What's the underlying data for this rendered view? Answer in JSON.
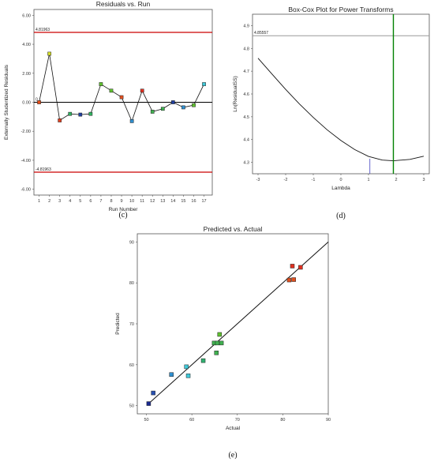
{
  "chart_data": [
    {
      "id": "c",
      "type": "line",
      "title": "Residuals vs. Run",
      "xlabel": "Run Number",
      "ylabel": "Externally Studentized Residuals",
      "caption": "(c)",
      "xlim": [
        0.5,
        17.8
      ],
      "ylim": [
        -6.4,
        6.4
      ],
      "x_ticks": [
        "1",
        "2",
        "3",
        "4",
        "5",
        "6",
        "7",
        "8",
        "9",
        "10",
        "11",
        "12",
        "13",
        "14",
        "15",
        "16",
        "17"
      ],
      "y_ticks": [
        {
          "v": 6,
          "label": "6.00"
        },
        {
          "v": 4,
          "label": "4.00"
        },
        {
          "v": 2,
          "label": "2.00"
        },
        {
          "v": 0,
          "label": "0.00"
        },
        {
          "v": -2,
          "label": "-2.00"
        },
        {
          "v": -4,
          "label": "-4.00"
        },
        {
          "v": -6,
          "label": "-6.00"
        }
      ],
      "ref_lines": [
        {
          "v": 4.81963,
          "label": "4.81963",
          "color": "#cc0000"
        },
        {
          "v": 0,
          "label": "0",
          "color": "#000000"
        },
        {
          "v": -4.81963,
          "label": "-4.81963",
          "color": "#cc0000"
        }
      ],
      "x": [
        1,
        2,
        3,
        4,
        5,
        6,
        7,
        8,
        9,
        10,
        11,
        12,
        13,
        14,
        15,
        16,
        17
      ],
      "values": [
        0.0,
        3.35,
        -1.25,
        -0.8,
        -0.85,
        -0.8,
        1.25,
        0.8,
        0.35,
        -1.3,
        0.8,
        -0.65,
        -0.45,
        0.0,
        -0.35,
        -0.2,
        1.25
      ],
      "point_colors": [
        "#e8501a",
        "#d6e02a",
        "#e04020",
        "#30b060",
        "#2040a0",
        "#30b060",
        "#60c030",
        "#60c030",
        "#e05020",
        "#3090d0",
        "#e03020",
        "#40b050",
        "#40b050",
        "#2040a0",
        "#3090d0",
        "#60c030",
        "#40c8d8"
      ]
    },
    {
      "id": "d",
      "type": "line",
      "title": "Box-Cox Plot for Power Transforms",
      "xlabel": "Lambda",
      "ylabel": "Ln(ResidualSS)",
      "caption": "(d)",
      "xlim": [
        -3.2,
        3.2
      ],
      "ylim": [
        4.25,
        4.95
      ],
      "x_ticks": [
        {
          "v": -3,
          "label": "-3"
        },
        {
          "v": -2,
          "label": "-2"
        },
        {
          "v": -1,
          "label": "-1"
        },
        {
          "v": 0,
          "label": "0"
        },
        {
          "v": 1,
          "label": "1"
        },
        {
          "v": 2,
          "label": "2"
        },
        {
          "v": 3,
          "label": "3"
        }
      ],
      "y_ticks": [
        {
          "v": 4.3,
          "label": "4.3"
        },
        {
          "v": 4.4,
          "label": "4.4"
        },
        {
          "v": 4.5,
          "label": "4.5"
        },
        {
          "v": 4.6,
          "label": "4.6"
        },
        {
          "v": 4.7,
          "label": "4.7"
        },
        {
          "v": 4.8,
          "label": "4.8"
        },
        {
          "v": 4.9,
          "label": "4.9"
        }
      ],
      "ref_lines": [
        {
          "v": 4.85557,
          "label": "4.85557",
          "color": "#999999"
        }
      ],
      "vlines": [
        {
          "v": 1.9,
          "color": "#008000"
        },
        {
          "v": 1.05,
          "color": "#4040c0"
        }
      ],
      "x": [
        -3.0,
        -2.5,
        -2.0,
        -1.5,
        -1.0,
        -0.5,
        0.0,
        0.5,
        1.0,
        1.5,
        1.9,
        2.5,
        3.0
      ],
      "values": [
        4.757,
        4.688,
        4.62,
        4.556,
        4.497,
        4.443,
        4.396,
        4.356,
        4.326,
        4.31,
        4.307,
        4.313,
        4.327
      ]
    },
    {
      "id": "e",
      "type": "scatter",
      "title": "Predicted vs. Actual",
      "xlabel": "Actual",
      "ylabel": "Predicted",
      "caption": "(e)",
      "xlim": [
        48,
        90
      ],
      "ylim": [
        48,
        92
      ],
      "x_ticks": [
        {
          "v": 50,
          "label": "50"
        },
        {
          "v": 60,
          "label": "60"
        },
        {
          "v": 70,
          "label": "70"
        },
        {
          "v": 80,
          "label": "80"
        },
        {
          "v": 90,
          "label": "90"
        }
      ],
      "y_ticks": [
        {
          "v": 50,
          "label": "50"
        },
        {
          "v": 60,
          "label": "60"
        },
        {
          "v": 70,
          "label": "70"
        },
        {
          "v": 80,
          "label": "80"
        },
        {
          "v": 90,
          "label": "90"
        }
      ],
      "fit_line": [
        [
          50.5,
          50.5
        ],
        [
          90,
          90
        ]
      ],
      "points": [
        {
          "x": 50.5,
          "y": 50.5,
          "color": "#1a2a90"
        },
        {
          "x": 51.5,
          "y": 53.1,
          "color": "#2850b0"
        },
        {
          "x": 55.5,
          "y": 57.6,
          "color": "#3090d0"
        },
        {
          "x": 58.8,
          "y": 59.5,
          "color": "#40c8d8"
        },
        {
          "x": 59.2,
          "y": 57.3,
          "color": "#40c8d8"
        },
        {
          "x": 62.5,
          "y": 61.0,
          "color": "#30b070"
        },
        {
          "x": 64.9,
          "y": 65.3,
          "color": "#40b050"
        },
        {
          "x": 65.6,
          "y": 65.3,
          "color": "#40b050"
        },
        {
          "x": 66.5,
          "y": 65.3,
          "color": "#40b050"
        },
        {
          "x": 65.4,
          "y": 62.9,
          "color": "#40b050"
        },
        {
          "x": 66.1,
          "y": 67.4,
          "color": "#60c030"
        },
        {
          "x": 81.4,
          "y": 80.7,
          "color": "#e05020"
        },
        {
          "x": 82.4,
          "y": 80.8,
          "color": "#e05020"
        },
        {
          "x": 82.1,
          "y": 84.1,
          "color": "#e03020"
        },
        {
          "x": 83.9,
          "y": 83.8,
          "color": "#e03020"
        }
      ]
    }
  ]
}
